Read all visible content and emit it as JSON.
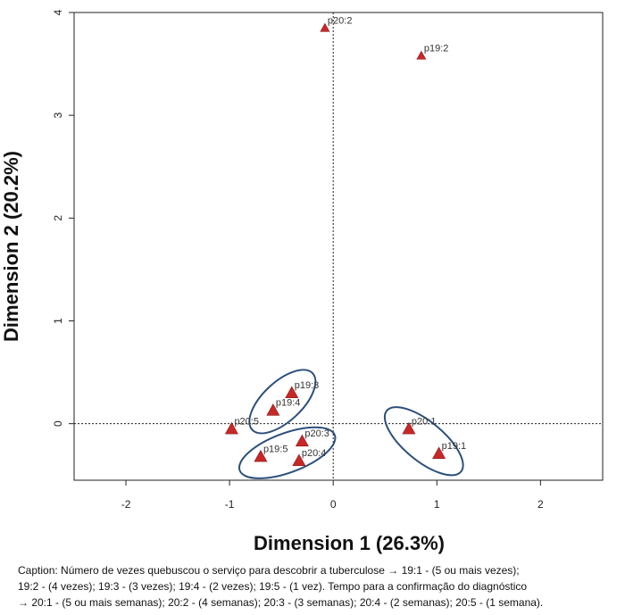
{
  "chart_data": {
    "type": "scatter",
    "title": "",
    "xlabel": "Dimension 1 (26.3%)",
    "ylabel": "Dimension 2 (20.2%)",
    "xlim": [
      -2.5,
      2.6
    ],
    "ylim": [
      -0.55,
      4.0
    ],
    "xticks": [
      -2,
      -1,
      0,
      1,
      2
    ],
    "yticks": [
      0,
      1,
      2,
      3,
      4
    ],
    "reference_lines": {
      "x": 0,
      "y": 0,
      "style": "dotted"
    },
    "marker_color": "#c62828",
    "ellipse_color": "#2b4f7c",
    "points": [
      {
        "label": "p20:2",
        "x": -0.08,
        "y": 3.85
      },
      {
        "label": "p19:2",
        "x": 0.85,
        "y": 3.58
      },
      {
        "label": "p19:3",
        "x": -0.4,
        "y": 0.3
      },
      {
        "label": "p19:4",
        "x": -0.58,
        "y": 0.13
      },
      {
        "label": "p20:5",
        "x": -0.98,
        "y": -0.05
      },
      {
        "label": "p20:3",
        "x": -0.3,
        "y": -0.17
      },
      {
        "label": "p19:5",
        "x": -0.7,
        "y": -0.32
      },
      {
        "label": "p20:4",
        "x": -0.33,
        "y": -0.36
      },
      {
        "label": "p20:1",
        "x": 0.73,
        "y": -0.05
      },
      {
        "label": "p19:1",
        "x": 1.02,
        "y": -0.29
      }
    ],
    "groups": [
      {
        "name": "upper-left",
        "members": [
          "p19:3",
          "p19:4"
        ]
      },
      {
        "name": "lower-left",
        "members": [
          "p19:5",
          "p20:4",
          "p20:3"
        ]
      },
      {
        "name": "right",
        "members": [
          "p20:1",
          "p19:1"
        ]
      }
    ]
  },
  "caption": {
    "line1": "Caption:  Número de vezes quebuscou o serviço para descobrir a tuberculose → 19:1 - (5 ou mais vezes);",
    "line2": "19:2 - (4 vezes); 19:3 - (3 vezes); 19:4 - (2 vezes); 19:5 - (1 vez).  Tempo para a confirmação do diagnóstico",
    "line3": "→ 20:1 - (5 ou mais semanas); 20:2 - (4 semanas); 20:3 - (3 semanas); 20:4 - (2 semanas); 20:5 - (1 semana)."
  }
}
